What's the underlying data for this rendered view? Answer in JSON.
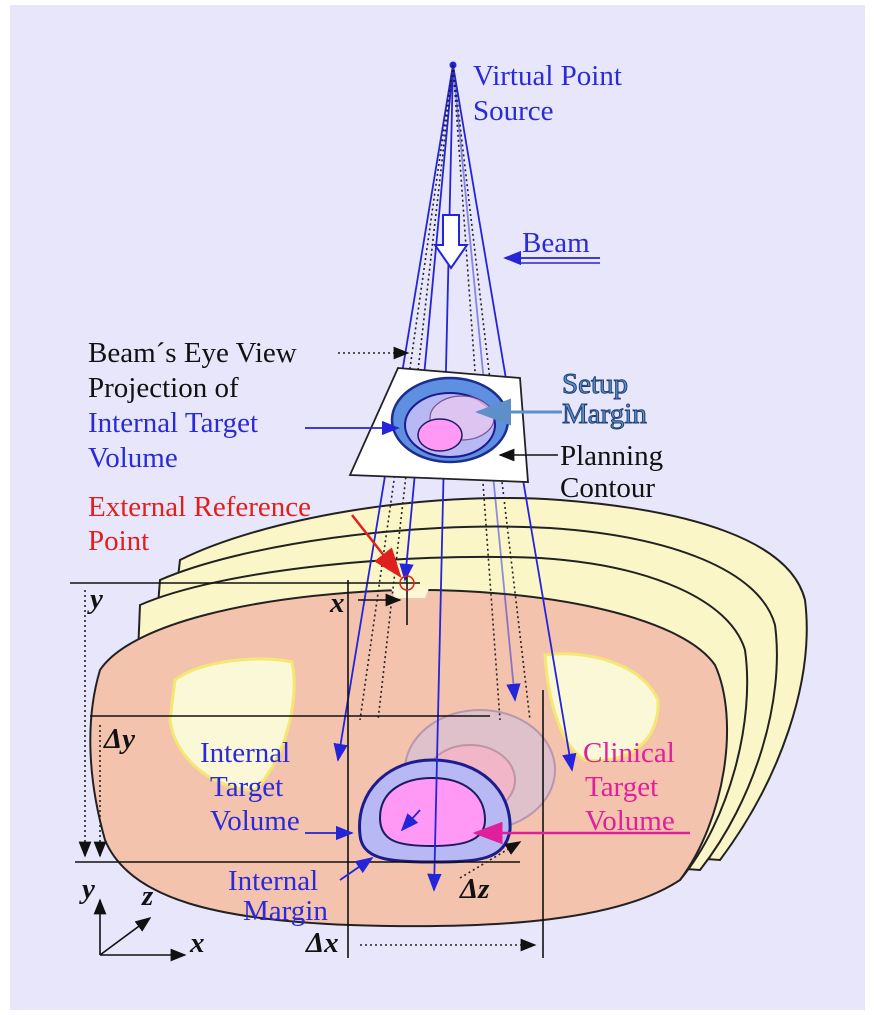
{
  "labels": {
    "virtual_point_source": [
      "Virtual Point",
      "Source"
    ],
    "beam": "Beam",
    "beams_eye_view": [
      "Beam´s Eye View",
      "Projection of"
    ],
    "itv_projection": [
      "Internal Target",
      "Volume"
    ],
    "setup_margin": [
      "Setup",
      "Margin"
    ],
    "planning_contour": [
      "Planning",
      "Contour"
    ],
    "external_reference_point": [
      "External Reference",
      "Point"
    ],
    "internal_target_volume": [
      "Internal",
      "Target",
      "Volume"
    ],
    "clinical_target_volume": [
      "Clinical",
      "Target",
      "Volume"
    ],
    "internal_margin": [
      "Internal",
      "Margin"
    ]
  },
  "dimensions": {
    "y": "y",
    "x": "x",
    "delta_y": "Δy",
    "delta_z": "Δz",
    "delta_x": "Δx"
  },
  "axes": {
    "y": "y",
    "z": "z",
    "x": "x"
  }
}
